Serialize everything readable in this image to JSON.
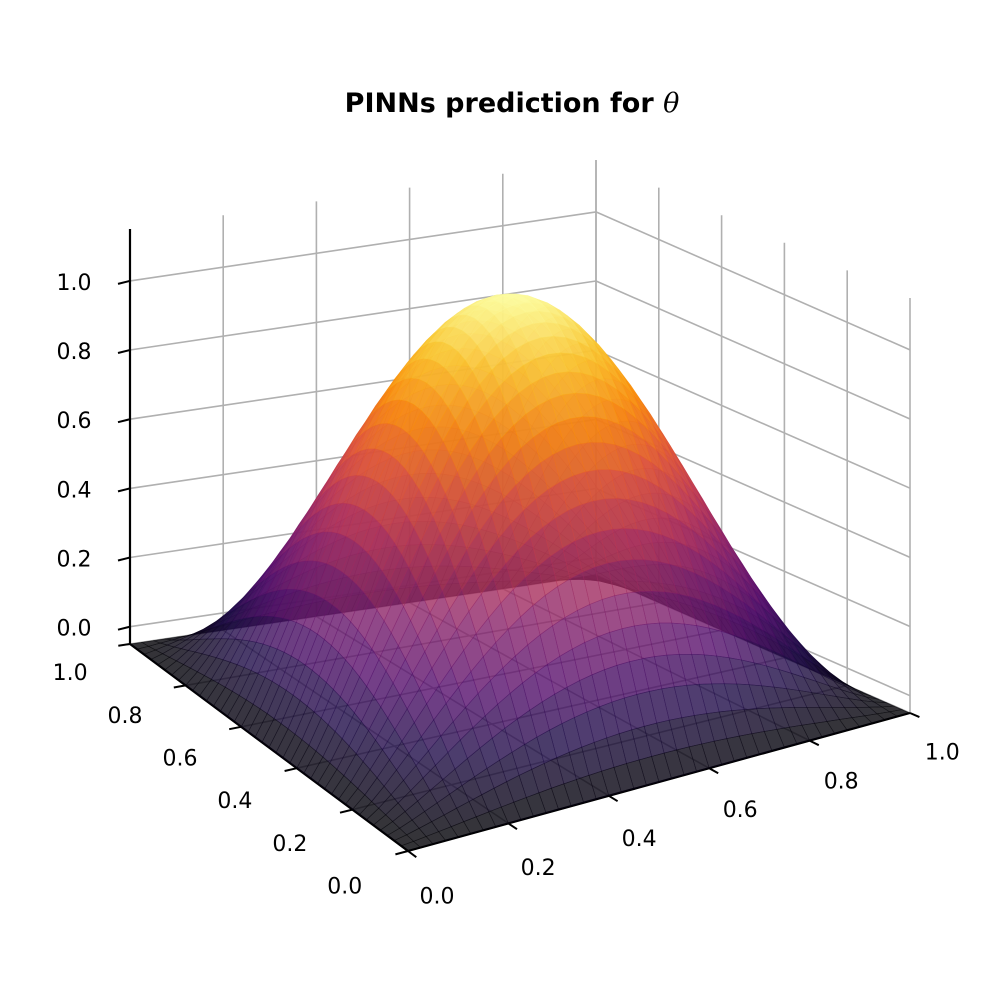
{
  "chart_data": {
    "type": "surface3d",
    "title": "PINNs prediction for",
    "title_symbol": "θ",
    "colormap": "inferno",
    "x_ticks": [
      "0.0",
      "0.2",
      "0.4",
      "0.6",
      "0.8",
      "1.0"
    ],
    "y_ticks": [
      "0.0",
      "0.2",
      "0.4",
      "0.6",
      "0.8",
      "1.0"
    ],
    "z_ticks": [
      "0.0",
      "0.2",
      "0.4",
      "0.6",
      "0.8",
      "1.0"
    ],
    "xlim": [
      0,
      1
    ],
    "ylim": [
      0,
      1
    ],
    "zlim": [
      -0.05,
      1.15
    ],
    "z_min": -0.05,
    "z_max": 1.1,
    "grid": true,
    "alpha": 0.8
  }
}
